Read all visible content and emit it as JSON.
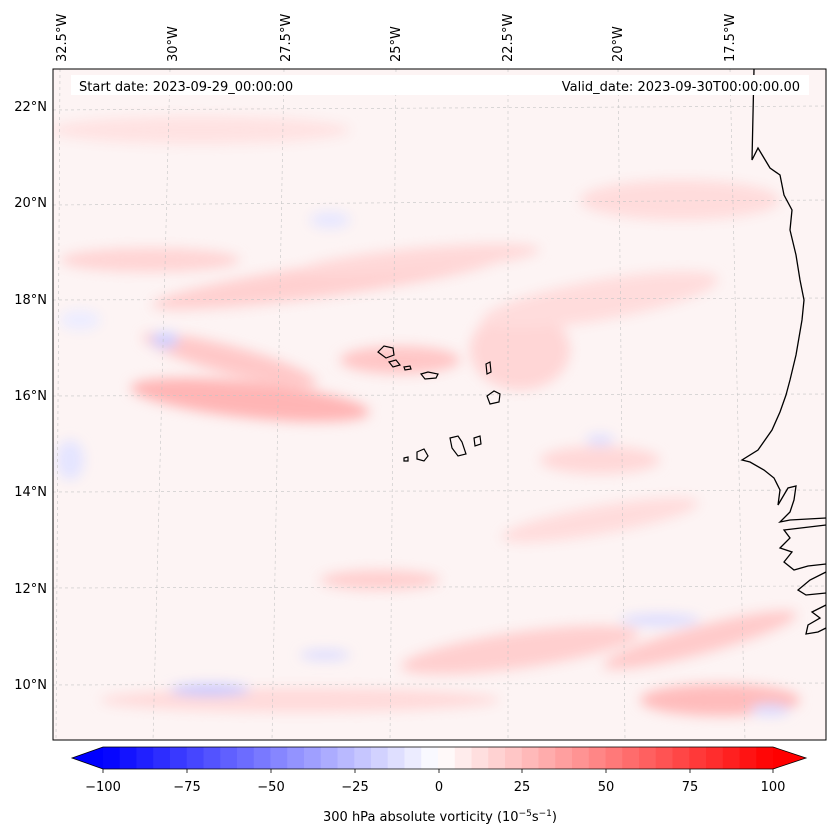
{
  "header": {
    "start_date": "Start date: 2023-09-29_00:00:00",
    "valid_date": "Valid_date: 2023-09-30T00:00:00.00"
  },
  "longitude_labels": [
    "32.5°W",
    "30°W",
    "27.5°W",
    "25°W",
    "22.5°W",
    "20°W",
    "17.5°W"
  ],
  "latitude_labels": [
    "22°N",
    "20°N",
    "18°N",
    "16°N",
    "14°N",
    "12°N",
    "10°N"
  ],
  "colorbar": {
    "ticks": [
      "−100",
      "−75",
      "−50",
      "−25",
      "0",
      "25",
      "50",
      "75",
      "100"
    ],
    "label_main": "300 hPa absolute vorticity (10",
    "label_exp1": "−5",
    "label_mid": "s",
    "label_exp2": "−1",
    "label_end": ")",
    "min": -100,
    "max": 100,
    "low_color": "#0000ff",
    "mid_color": "#ffffff",
    "high_color": "#ff0000"
  },
  "colors": {
    "background_field": "#fdf3f3",
    "coastline": "#000000",
    "gridline": "#bbbbbb"
  }
}
